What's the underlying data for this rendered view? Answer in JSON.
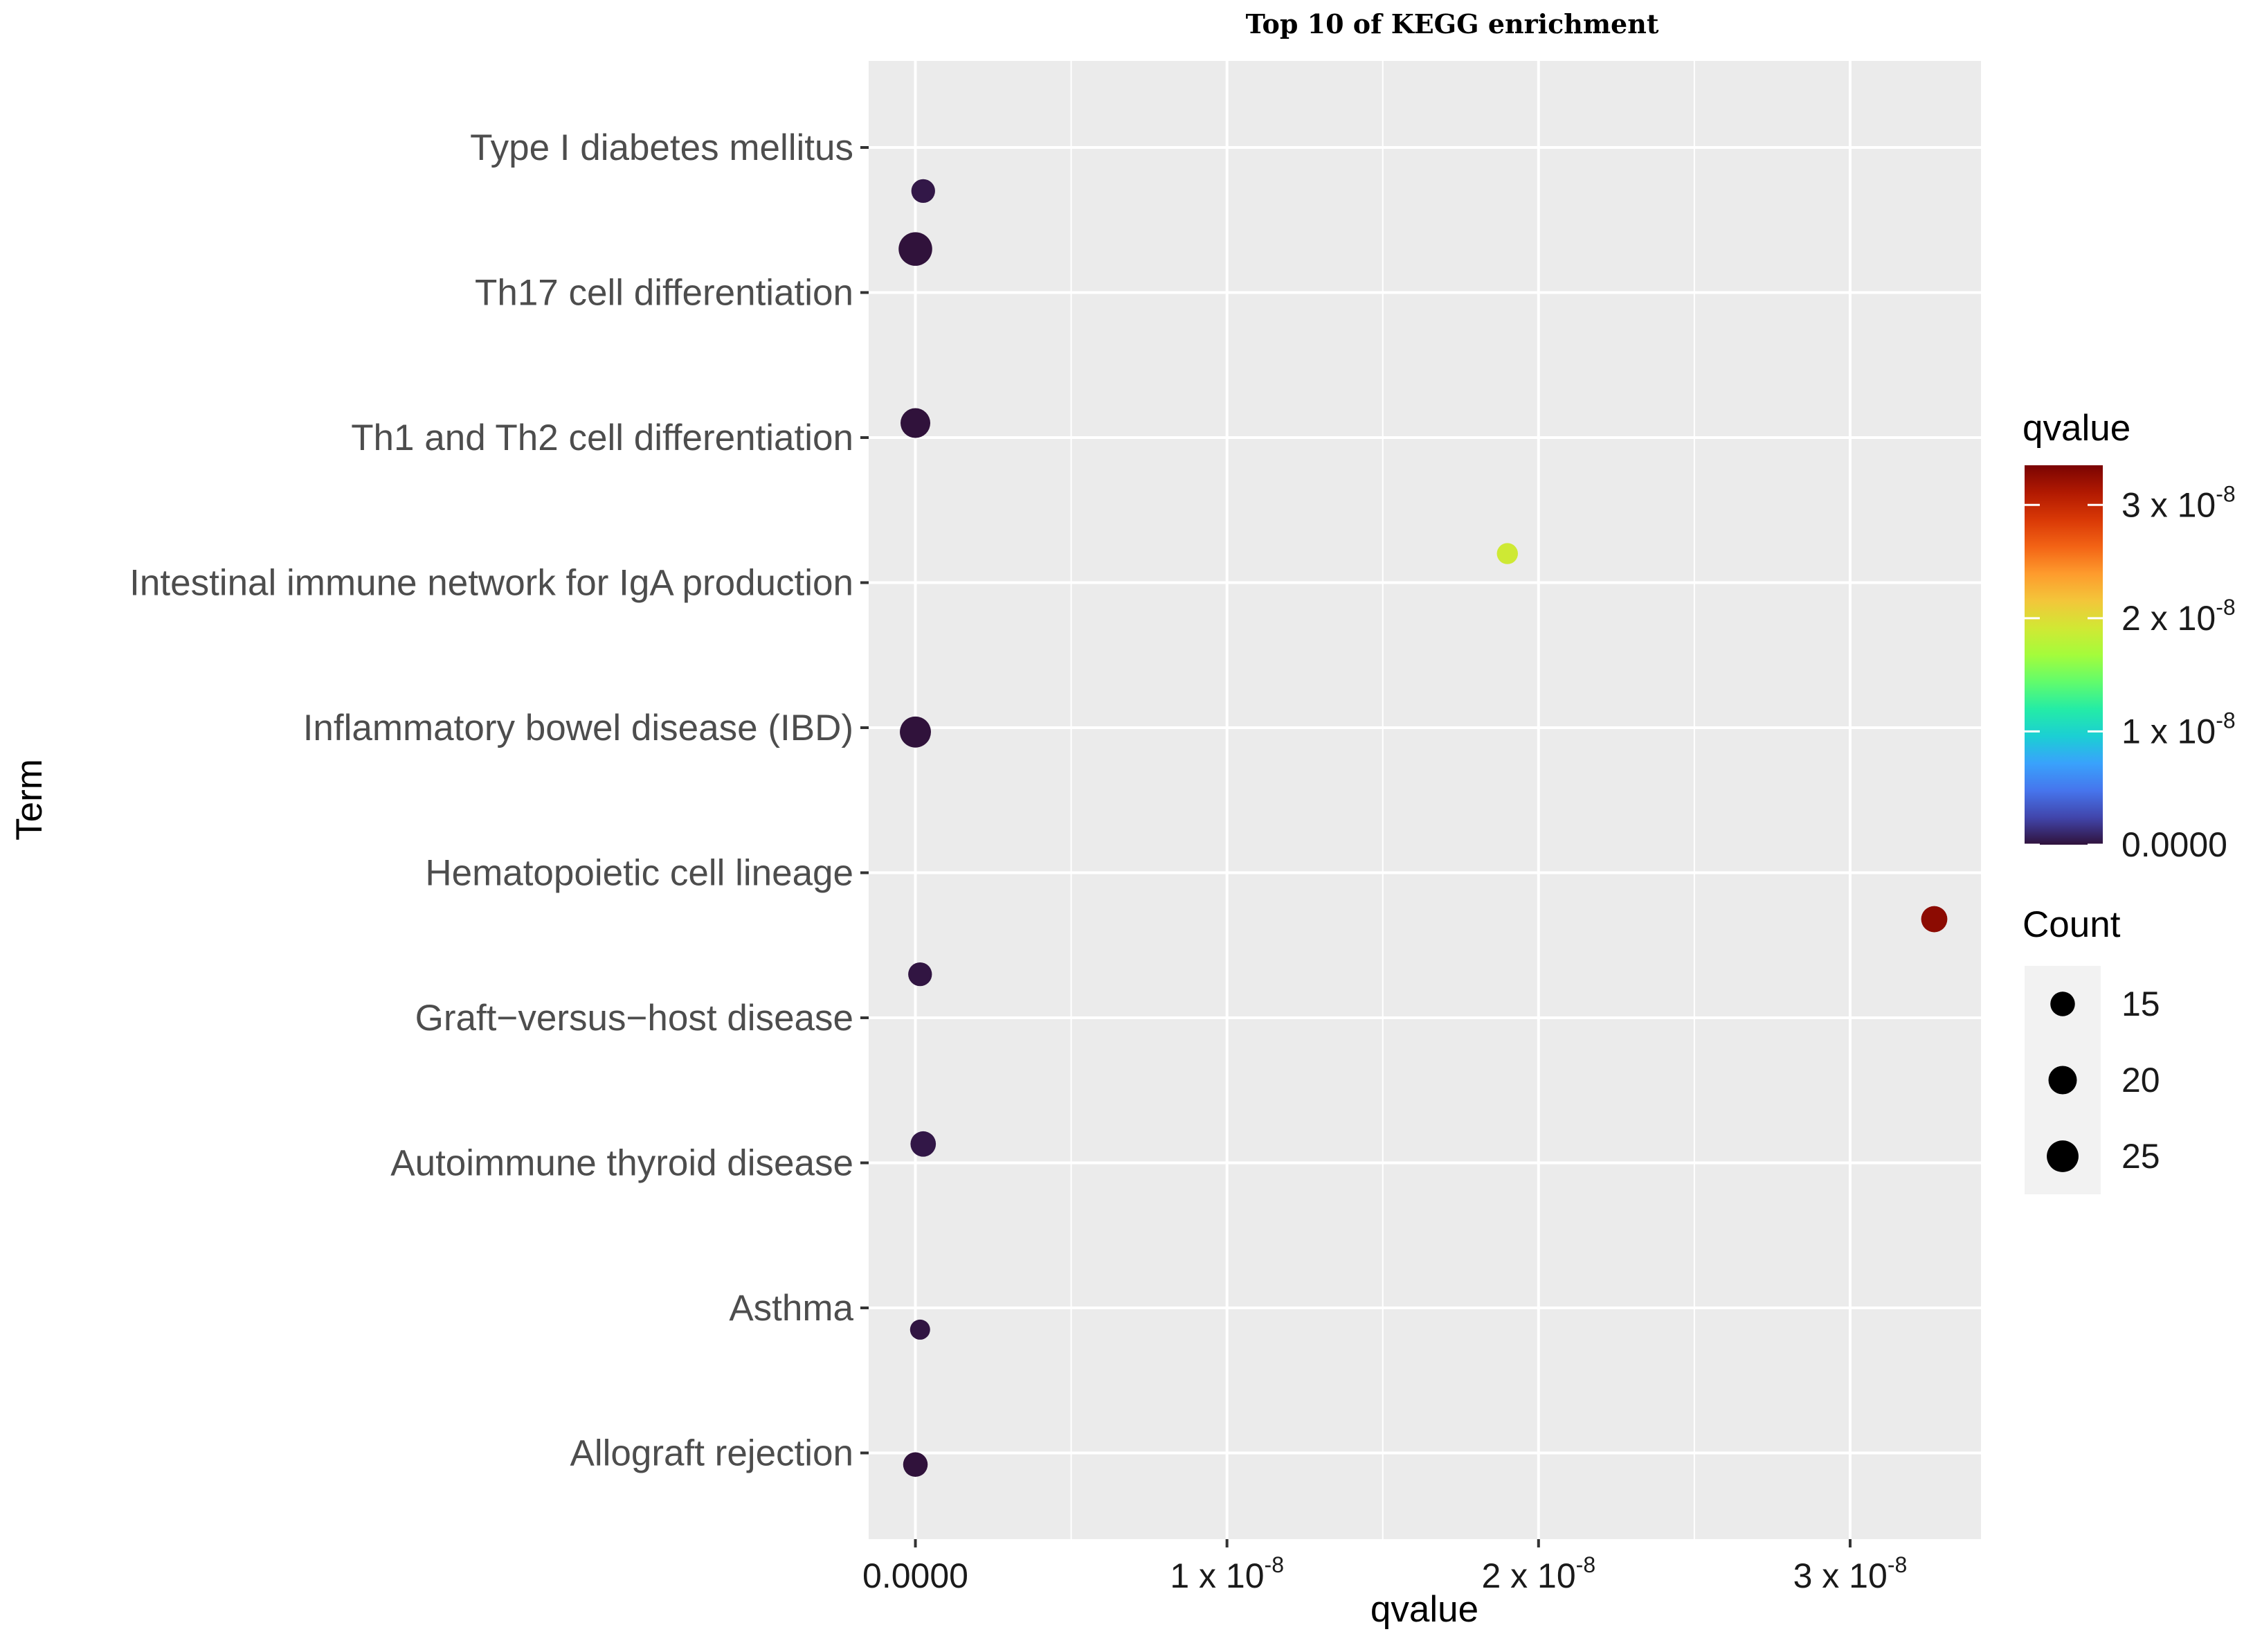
{
  "chart_data": {
    "type": "scatter",
    "title": "Top 10 of KEGG enrichment",
    "xlabel": "qvalue",
    "ylabel": "Term",
    "xlim": [
      -1.5e-09,
      3.42e-08
    ],
    "x_ticks": [
      {
        "value": 0,
        "label": "0.0000",
        "sup": ""
      },
      {
        "value": 1e-08,
        "label": "1 x 10",
        "sup": "-8"
      },
      {
        "value": 2e-08,
        "label": "2 x 10",
        "sup": "-8"
      },
      {
        "value": 3e-08,
        "label": "3 x 10",
        "sup": "-8"
      }
    ],
    "grid": true,
    "categories": [
      "Type I diabetes mellitus",
      "Th17 cell differentiation",
      "Th1 and Th2 cell differentiation",
      "Intestinal immune network for IgA production",
      "Inflammatory bowel disease (IBD)",
      "Hematopoietic cell lineage",
      "Graft−versus−host disease",
      "Autoimmune thyroid disease",
      "Asthma",
      "Allograft rejection"
    ],
    "points": [
      {
        "term": "Type I diabetes mellitus",
        "qvalue": 2.5e-10,
        "count": 14,
        "offset": 0.3
      },
      {
        "term": "Th17 cell differentiation",
        "qvalue": 0,
        "count": 28,
        "offset": -0.3
      },
      {
        "term": "Th1 and Th2 cell differentiation",
        "qvalue": 0,
        "count": 22,
        "offset": -0.1
      },
      {
        "term": "Intestinal immune network for IgA production",
        "qvalue": 1.9e-08,
        "count": 11,
        "offset": -0.2
      },
      {
        "term": "Inflammatory bowel disease (IBD)",
        "qvalue": 0,
        "count": 24,
        "offset": 0.03
      },
      {
        "term": "Hematopoietic cell lineage",
        "qvalue": 3.27e-08,
        "count": 17,
        "offset": 0.32
      },
      {
        "term": "Graft−versus−host disease",
        "qvalue": 1.5e-10,
        "count": 14,
        "offset": -0.3
      },
      {
        "term": "Autoimmune thyroid disease",
        "qvalue": 2.5e-10,
        "count": 16,
        "offset": -0.13
      },
      {
        "term": "Asthma",
        "qvalue": 1.5e-10,
        "count": 10,
        "offset": 0.15
      },
      {
        "term": "Allograft rejection",
        "qvalue": 0,
        "count": 15,
        "offset": 0.08
      }
    ],
    "legend": {
      "placement": "right",
      "color": {
        "title": "qvalue",
        "range": [
          0,
          3.35e-08
        ],
        "ticks": [
          {
            "value": 0,
            "label": "0.0000",
            "sup": ""
          },
          {
            "value": 1e-08,
            "label": "1 x 10",
            "sup": "-8"
          },
          {
            "value": 2e-08,
            "label": "2 x 10",
            "sup": "-8"
          },
          {
            "value": 3e-08,
            "label": "3 x 10",
            "sup": "-8"
          }
        ]
      },
      "size": {
        "title": "Count",
        "entries": [
          {
            "value": 15,
            "label": "15"
          },
          {
            "value": 20,
            "label": "20"
          },
          {
            "value": 25,
            "label": "25"
          }
        ]
      }
    },
    "colormap": [
      "#30123b",
      "#4145ab",
      "#4675ed",
      "#39a2fc",
      "#1bcfd4",
      "#24eca6",
      "#61fc6c",
      "#a4fc3b",
      "#d1e834",
      "#f3c63a",
      "#fe9b2d",
      "#f36315",
      "#d93806",
      "#b11901",
      "#7a0403"
    ]
  }
}
